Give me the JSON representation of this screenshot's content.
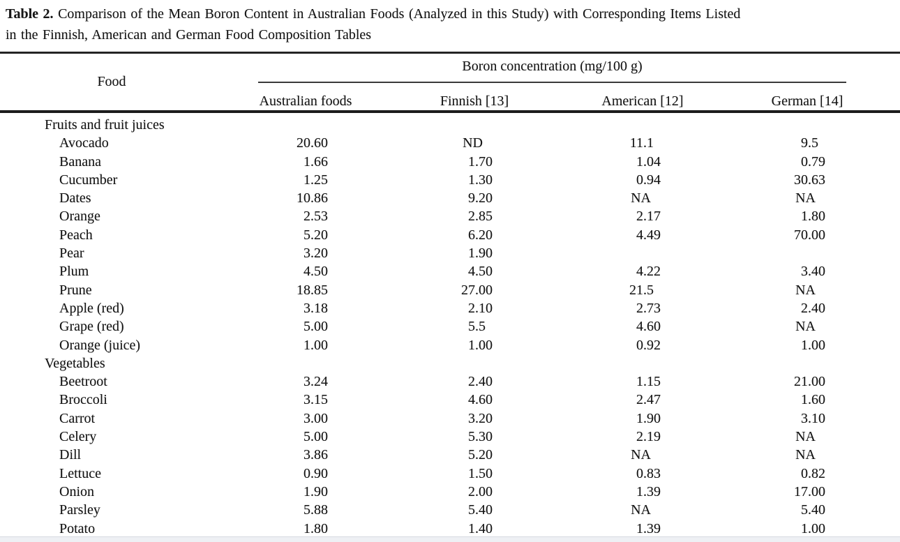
{
  "caption": {
    "label": "Table 2.",
    "line1": "Comparison of the Mean Boron Content in Australian Foods (Analyzed in this Study) with Corresponding Items Listed",
    "line2": "in the Finnish, American and German Food Composition Tables"
  },
  "table": {
    "food_header": "Food",
    "spanner": "Boron concentration (mg/100 g)",
    "columns": [
      "Australian foods",
      "Finnish [13]",
      "American [12]",
      "German [14]"
    ],
    "sections": [
      {
        "name": "Fruits and fruit juices",
        "rows": [
          {
            "food": "Avocado",
            "values": [
              "20.60",
              "ND",
              "11.1",
              "9.5"
            ]
          },
          {
            "food": "Banana",
            "values": [
              "1.66",
              "1.70",
              "1.04",
              "0.79"
            ]
          },
          {
            "food": "Cucumber",
            "values": [
              "1.25",
              "1.30",
              "0.94",
              "30.63"
            ]
          },
          {
            "food": "Dates",
            "values": [
              "10.86",
              "9.20",
              "NA",
              "NA"
            ]
          },
          {
            "food": "Orange",
            "values": [
              "2.53",
              "2.85",
              "2.17",
              "1.80"
            ]
          },
          {
            "food": "Peach",
            "values": [
              "5.20",
              "6.20",
              "4.49",
              "70.00"
            ]
          },
          {
            "food": "Pear",
            "values": [
              "3.20",
              "1.90",
              "",
              ""
            ]
          },
          {
            "food": "Plum",
            "values": [
              "4.50",
              "4.50",
              "4.22",
              "3.40"
            ]
          },
          {
            "food": "Prune",
            "values": [
              "18.85",
              "27.00",
              "21.5",
              "NA"
            ]
          },
          {
            "food": "Apple (red)",
            "values": [
              "3.18",
              "2.10",
              "2.73",
              "2.40"
            ]
          },
          {
            "food": "Grape (red)",
            "values": [
              "5.00",
              "5.5",
              "4.60",
              "NA"
            ]
          },
          {
            "food": "Orange (juice)",
            "values": [
              "1.00",
              "1.00",
              "0.92",
              "1.00"
            ]
          }
        ]
      },
      {
        "name": "Vegetables",
        "rows": [
          {
            "food": "Beetroot",
            "values": [
              "3.24",
              "2.40",
              "1.15",
              "21.00"
            ]
          },
          {
            "food": "Broccoli",
            "values": [
              "3.15",
              "4.60",
              "2.47",
              "1.60"
            ]
          },
          {
            "food": "Carrot",
            "values": [
              "3.00",
              "3.20",
              "1.90",
              "3.10"
            ]
          },
          {
            "food": "Celery",
            "values": [
              "5.00",
              "5.30",
              "2.19",
              "NA"
            ]
          },
          {
            "food": "Dill",
            "values": [
              "3.86",
              "5.20",
              "NA",
              "NA"
            ]
          },
          {
            "food": "Lettuce",
            "values": [
              "0.90",
              "1.50",
              "0.83",
              "0.82"
            ]
          },
          {
            "food": "Onion",
            "values": [
              "1.90",
              "2.00",
              "1.39",
              "17.00"
            ]
          },
          {
            "food": "Parsley",
            "values": [
              "5.88",
              "5.40",
              "NA",
              "5.40"
            ]
          },
          {
            "food": "Potato",
            "values": [
              "1.80",
              "1.40",
              "1.39",
              "1.00"
            ]
          }
        ]
      }
    ]
  }
}
